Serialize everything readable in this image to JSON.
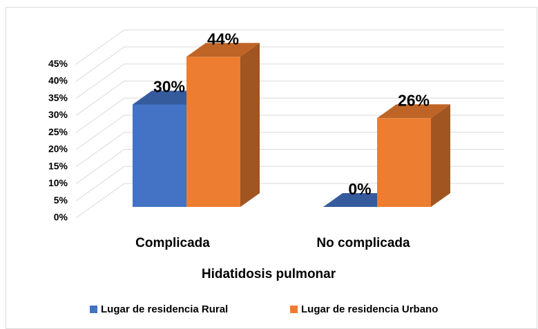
{
  "chart_data": {
    "type": "bar3d",
    "x_label": "Hidatidosis pulmonar",
    "categories": [
      "Complicada",
      "No complicada"
    ],
    "series": [
      {
        "name": "Lugar de residencia Rural",
        "color": "#4472c4",
        "values": [
          30,
          0
        ],
        "value_labels": [
          "30%",
          "0%"
        ]
      },
      {
        "name": "Lugar de residencia Urbano",
        "color": "#ed7d31",
        "values": [
          44,
          26
        ],
        "value_labels": [
          "44%",
          "26%"
        ]
      }
    ],
    "ylim": [
      0,
      50
    ],
    "yticks": [
      {
        "value": 0,
        "label": "0%"
      },
      {
        "value": 5,
        "label": "5%"
      },
      {
        "value": 10,
        "label": "10%"
      },
      {
        "value": 15,
        "label": "15%"
      },
      {
        "value": 20,
        "label": "20%"
      },
      {
        "value": 25,
        "label": "25%"
      },
      {
        "value": 30,
        "label": "30%"
      },
      {
        "value": 35,
        "label": "35%"
      },
      {
        "value": 40,
        "label": "40%"
      },
      {
        "value": 45,
        "label": "45%"
      }
    ],
    "grid": true,
    "legend": "bottom"
  }
}
